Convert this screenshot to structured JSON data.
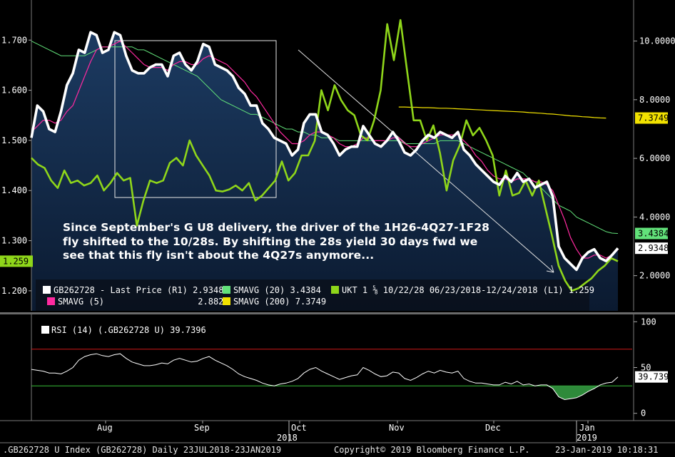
{
  "chart_data": {
    "type": "line",
    "main": {
      "left_axis": {
        "ticks": [
          "1.200",
          "1.300",
          "1.400",
          "1.500",
          "1.600",
          "1.700"
        ],
        "range": [
          1.16,
          1.78
        ]
      },
      "right_axis": {
        "ticks": [
          "2.0000",
          "4.0000",
          "6.0000",
          "8.0000",
          "10.0000"
        ],
        "range": [
          0.8,
          11.4
        ]
      },
      "x_labels": [
        "Aug",
        "Sep",
        "Oct",
        "Nov",
        "Dec",
        "Jan"
      ],
      "year_labels": [
        "2018",
        "2019"
      ],
      "last_values": {
        "ukt": "1.259",
        "smavg20": "3.4384",
        "price": "2.9348",
        "smavg200": "7.3749"
      },
      "series": [
        {
          "name": "GB262728 - Last Price (R1)",
          "axis": "right",
          "color": "#ffffff",
          "values": [
            6.7,
            7.8,
            7.6,
            7.0,
            6.9,
            7.6,
            8.5,
            8.9,
            9.7,
            9.6,
            10.3,
            10.2,
            9.6,
            9.7,
            10.3,
            10.2,
            9.5,
            9.0,
            8.9,
            8.9,
            9.1,
            9.2,
            9.2,
            8.8,
            9.5,
            9.6,
            9.2,
            9.0,
            9.3,
            9.9,
            9.8,
            9.2,
            9.1,
            9.0,
            8.8,
            8.4,
            8.2,
            7.8,
            7.8,
            7.2,
            7.0,
            6.7,
            6.6,
            6.5,
            6.1,
            6.3,
            7.2,
            7.5,
            7.5,
            6.9,
            6.8,
            6.5,
            6.1,
            6.3,
            6.4,
            6.4,
            7.1,
            6.8,
            6.5,
            6.4,
            6.6,
            6.9,
            6.6,
            6.2,
            6.1,
            6.3,
            6.6,
            6.8,
            6.7,
            6.9,
            6.8,
            6.7,
            6.9,
            6.3,
            6.1,
            5.8,
            5.6,
            5.4,
            5.2,
            5.1,
            5.4,
            5.2,
            5.5,
            5.2,
            5.3,
            5.0,
            5.1,
            5.2,
            4.7,
            3.0,
            2.6,
            2.4,
            2.2,
            2.6,
            2.8,
            2.9,
            2.6,
            2.5,
            2.7,
            2.9348
          ]
        },
        {
          "name": "SMAVG (5)",
          "axis": "right",
          "color": "#ff2aa0",
          "values": [
            6.9,
            7.1,
            7.3,
            7.3,
            7.2,
            7.3,
            7.6,
            7.8,
            8.3,
            8.8,
            9.3,
            9.7,
            9.8,
            9.8,
            9.9,
            10.0,
            9.8,
            9.6,
            9.4,
            9.2,
            9.1,
            9.1,
            9.1,
            9.0,
            9.2,
            9.3,
            9.3,
            9.2,
            9.2,
            9.4,
            9.5,
            9.4,
            9.3,
            9.2,
            9.0,
            8.8,
            8.6,
            8.3,
            8.1,
            7.8,
            7.5,
            7.2,
            6.9,
            6.7,
            6.5,
            6.5,
            6.6,
            6.8,
            6.9,
            6.9,
            6.8,
            6.7,
            6.5,
            6.4,
            6.4,
            6.5,
            6.7,
            6.7,
            6.6,
            6.6,
            6.6,
            6.7,
            6.7,
            6.5,
            6.4,
            6.4,
            6.5,
            6.6,
            6.7,
            6.8,
            6.8,
            6.8,
            6.8,
            6.6,
            6.4,
            6.1,
            5.9,
            5.6,
            5.4,
            5.3,
            5.3,
            5.2,
            5.3,
            5.3,
            5.3,
            5.2,
            5.2,
            5.1,
            4.9,
            4.4,
            3.9,
            3.3,
            2.9,
            2.6,
            2.6,
            2.7,
            2.7,
            2.6,
            2.7,
            2.8826
          ]
        },
        {
          "name": "SMAVG (20)",
          "axis": "right",
          "color": "#62e27a",
          "values": [
            10.0,
            9.9,
            9.8,
            9.7,
            9.6,
            9.5,
            9.5,
            9.5,
            9.5,
            9.5,
            9.6,
            9.7,
            9.8,
            9.8,
            9.8,
            9.8,
            9.8,
            9.8,
            9.7,
            9.7,
            9.6,
            9.5,
            9.4,
            9.3,
            9.2,
            9.1,
            9.0,
            8.9,
            8.8,
            8.6,
            8.4,
            8.2,
            8.0,
            7.9,
            7.8,
            7.7,
            7.6,
            7.5,
            7.5,
            7.4,
            7.3,
            7.2,
            7.1,
            7.0,
            7.0,
            6.9,
            6.9,
            6.8,
            6.8,
            6.7,
            6.7,
            6.7,
            6.6,
            6.6,
            6.6,
            6.6,
            6.6,
            6.6,
            6.6,
            6.6,
            6.6,
            6.6,
            6.6,
            6.5,
            6.5,
            6.5,
            6.5,
            6.5,
            6.5,
            6.6,
            6.6,
            6.6,
            6.6,
            6.5,
            6.4,
            6.3,
            6.2,
            6.1,
            6.0,
            5.9,
            5.8,
            5.7,
            5.6,
            5.5,
            5.3,
            5.2,
            5.0,
            4.8,
            4.6,
            4.4,
            4.3,
            4.2,
            4.0,
            3.9,
            3.8,
            3.7,
            3.6,
            3.5,
            3.45,
            3.4384
          ]
        },
        {
          "name": "SMAVG (200)",
          "axis": "right",
          "color": "#f2e200",
          "start_index": 62,
          "values": [
            7.75,
            7.75,
            7.74,
            7.74,
            7.73,
            7.73,
            7.72,
            7.71,
            7.71,
            7.7,
            7.69,
            7.68,
            7.67,
            7.66,
            7.65,
            7.64,
            7.63,
            7.62,
            7.61,
            7.6,
            7.59,
            7.58,
            7.56,
            7.55,
            7.54,
            7.52,
            7.51,
            7.49,
            7.47,
            7.45,
            7.44,
            7.42,
            7.41,
            7.39,
            7.38,
            7.3749
          ]
        },
        {
          "name": "UKT 1 ⅝ 10/22/28 06/23/2018-12/24/2018 (L1)",
          "axis": "left",
          "color": "#8fd61a",
          "values": [
            1.465,
            1.452,
            1.445,
            1.42,
            1.405,
            1.44,
            1.415,
            1.42,
            1.41,
            1.415,
            1.43,
            1.4,
            1.415,
            1.435,
            1.42,
            1.425,
            1.33,
            1.38,
            1.42,
            1.415,
            1.42,
            1.455,
            1.465,
            1.45,
            1.5,
            1.47,
            1.45,
            1.43,
            1.4,
            1.398,
            1.402,
            1.41,
            1.4,
            1.415,
            1.38,
            1.39,
            1.405,
            1.42,
            1.458,
            1.42,
            1.435,
            1.47,
            1.47,
            1.499,
            1.6,
            1.56,
            1.61,
            1.58,
            1.56,
            1.55,
            1.51,
            1.5,
            1.54,
            1.6,
            1.732,
            1.66,
            1.74,
            1.64,
            1.54,
            1.54,
            1.5,
            1.53,
            1.475,
            1.4,
            1.46,
            1.49,
            1.54,
            1.51,
            1.525,
            1.5,
            1.47,
            1.39,
            1.44,
            1.39,
            1.395,
            1.42,
            1.39,
            1.42,
            1.365,
            1.31,
            1.25,
            1.22,
            1.2,
            1.205,
            1.215,
            1.225,
            1.24,
            1.25,
            1.265,
            1.259
          ]
        }
      ]
    },
    "rsi": {
      "label": "RSI (14) (.GB262728 U)",
      "last": "39.7396",
      "ticks": [
        "0",
        "50",
        "100"
      ],
      "range": [
        -8,
        108
      ],
      "upper_band": 70,
      "lower_band": 30,
      "values": [
        48,
        47,
        46,
        44,
        44,
        43,
        46,
        50,
        58,
        62,
        64,
        65,
        63,
        62,
        64,
        65,
        60,
        56,
        54,
        52,
        52,
        53,
        55,
        54,
        58,
        60,
        58,
        56,
        57,
        60,
        62,
        58,
        55,
        52,
        48,
        43,
        40,
        38,
        36,
        33,
        31,
        30,
        32,
        33,
        35,
        38,
        44,
        48,
        50,
        46,
        43,
        40,
        37,
        39,
        41,
        42,
        50,
        47,
        43,
        40,
        41,
        45,
        44,
        38,
        36,
        39,
        43,
        46,
        44,
        47,
        45,
        44,
        46,
        38,
        35,
        33,
        33,
        32,
        31,
        31,
        34,
        32,
        35,
        31,
        32,
        30,
        31,
        31,
        27,
        18,
        15,
        16,
        17,
        20,
        24,
        27,
        31,
        33,
        34,
        39.7
      ]
    }
  },
  "annotation": "Since September's G U8 delivery, the driver of the 1H26-4Q27-1F28 fly shifted to the 10/28s. By shifting the 28s yield 30 days fwd we see that this fly isn't about the 4Q27s anymore...",
  "legend": {
    "price_label": "GB262728 - Last Price (R1)",
    "price_value": "2.9348",
    "sma5_label": "SMAVG (5)",
    "sma5_value": "2.8826",
    "sma20_label": "SMAVG (20)",
    "sma20_value": "3.4384",
    "sma200_label": "SMAVG (200)",
    "sma200_value": "7.3749",
    "ukt_label": "UKT 1 ⅝ 10/22/28 06/23/2018-12/24/2018 (L1)",
    "ukt_value": "1.259"
  },
  "footer": {
    "left": ".GB262728 U Index (GB262728)  Daily 23JUL2018-23JAN2019",
    "center": "Copyright© 2019 Bloomberg Finance L.P.",
    "right": "23-Jan-2019 10:18:31"
  },
  "colors": {
    "price": "#ffffff",
    "sma5": "#ff2aa0",
    "sma20": "#62e27a",
    "sma200": "#f2e200",
    "ukt": "#8fd61a",
    "fill_top": "#1c3b62",
    "fill_bottom": "#0b1a30",
    "rsi_upper": "#d01818",
    "rsi_lower": "#38c038"
  }
}
